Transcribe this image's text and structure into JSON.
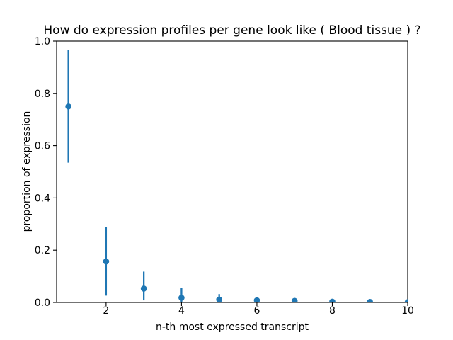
{
  "chart_data": {
    "type": "scatter",
    "subtype": "errorbar",
    "title": "How do expression profiles per gene look like ( Blood tissue ) ?",
    "xlabel": "n-th most expressed transcript",
    "ylabel": "proportion of expression",
    "x": [
      1,
      2,
      3,
      4,
      5,
      6,
      7,
      8,
      9,
      10
    ],
    "y": [
      0.75,
      0.157,
      0.053,
      0.018,
      0.011,
      0.008,
      0.006,
      0.003,
      0.002,
      0.001
    ],
    "err_low": [
      0.535,
      0.026,
      0.008,
      0.0,
      0.0,
      0.001,
      0.001,
      0.0,
      0.0,
      0.0
    ],
    "err_high": [
      0.965,
      0.288,
      0.118,
      0.056,
      0.032,
      0.014,
      0.01,
      0.005,
      0.004,
      0.002
    ],
    "xlim": [
      0.688,
      10
    ],
    "ylim": [
      0,
      1
    ],
    "xticks": [
      2,
      4,
      6,
      8,
      10
    ],
    "xtick_labels": [
      "2",
      "4",
      "6",
      "8",
      "10"
    ],
    "yticks": [
      0,
      0.2,
      0.4,
      0.6,
      0.8,
      1.0
    ],
    "ytick_labels": [
      "0.0",
      "0.2",
      "0.4",
      "0.6",
      "0.8",
      "1.0"
    ],
    "marker_color": "#1f77b4",
    "axis_color": "#000000",
    "background_color": "#ffffff",
    "grid": false,
    "legend": null
  }
}
